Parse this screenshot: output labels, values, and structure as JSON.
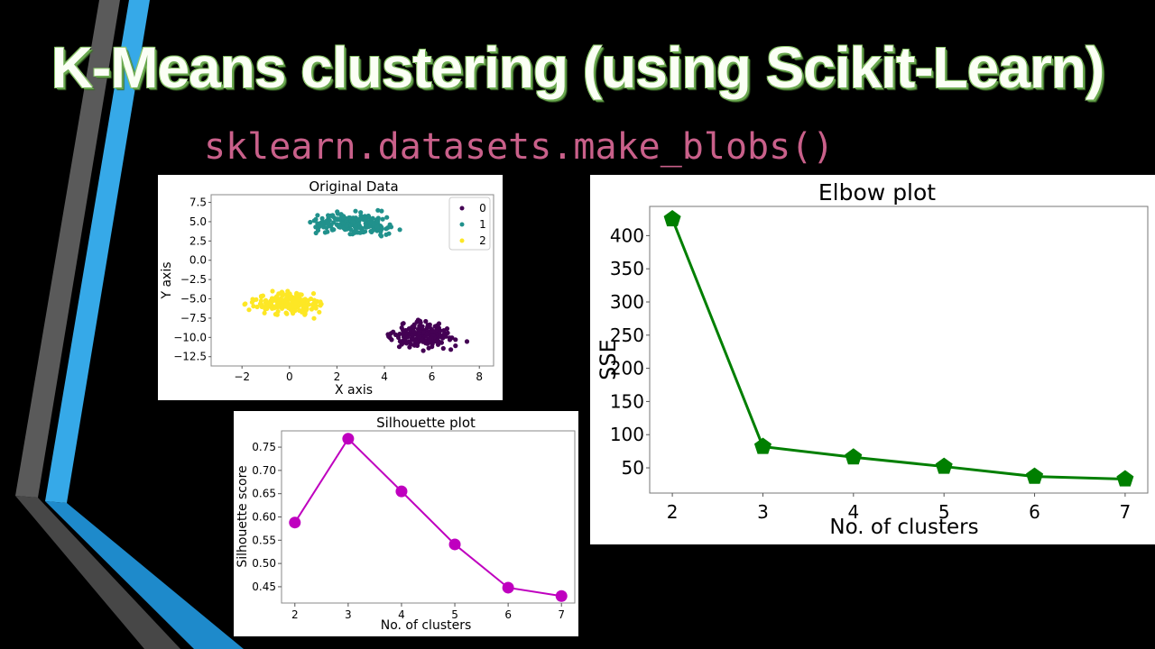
{
  "slide": {
    "title": "K-Means clustering (using Scikit-Learn)",
    "subtitle": "sklearn.datasets.make_blobs()",
    "colors": {
      "background": "#000000",
      "title_text": "#fbfff5",
      "title_outline": "#6aa84f",
      "subtitle_text": "#c9608a",
      "stripe_gray": "#5a5a5a",
      "stripe_blue": "#36a9e8"
    }
  },
  "chart_data": [
    {
      "type": "scatter",
      "title": "Original Data",
      "xlabel": "X axis",
      "ylabel": "Y axis",
      "xlim": [
        -3.3,
        8.6
      ],
      "ylim": [
        -13.7,
        8.5
      ],
      "xticks": [
        "-2",
        "0",
        "2",
        "4",
        "6",
        "8"
      ],
      "yticks": [
        "7.5",
        "5.0",
        "2.5",
        "0.0",
        "-2.5",
        "-5.0",
        "-7.5",
        "-10.0",
        "-12.5"
      ],
      "legend": {
        "position": "upper right",
        "entries": [
          "0",
          "1",
          "2"
        ]
      },
      "series": [
        {
          "name": "0",
          "color": "#440154",
          "center": [
            5.6,
            -9.8
          ],
          "spread_x": [
            3.1,
            8.1
          ],
          "spread_y": [
            -12.6,
            -7.1
          ],
          "n_points": 200
        },
        {
          "name": "1",
          "color": "#21918c",
          "center": [
            2.6,
            4.8
          ],
          "spread_x": [
            -0.6,
            5.3
          ],
          "spread_y": [
            2.8,
            7.6
          ],
          "n_points": 200
        },
        {
          "name": "2",
          "color": "#fde725",
          "center": [
            0.0,
            -5.5
          ],
          "spread_x": [
            -2.9,
            2.2
          ],
          "spread_y": [
            -8.1,
            -3.4
          ],
          "n_points": 200
        }
      ]
    },
    {
      "type": "line",
      "title": "Silhouette plot",
      "xlabel": "No. of clusters",
      "ylabel": "Silhouette score",
      "x": [
        2,
        3,
        4,
        5,
        6,
        7
      ],
      "values": [
        0.588,
        0.768,
        0.655,
        0.541,
        0.448,
        0.43
      ],
      "ylim": [
        0.415,
        0.785
      ],
      "yticks": [
        "0.75",
        "0.70",
        "0.65",
        "0.60",
        "0.55",
        "0.50",
        "0.45"
      ],
      "color": "#bf00bf",
      "marker": "circle"
    },
    {
      "type": "line",
      "title": "Elbow plot",
      "xlabel": "No. of clusters",
      "ylabel": "SSE",
      "x": [
        2,
        3,
        4,
        5,
        6,
        7
      ],
      "values": [
        425,
        82,
        66,
        52,
        37,
        33
      ],
      "ylim": [
        12,
        444
      ],
      "yticks": [
        "400",
        "350",
        "300",
        "250",
        "200",
        "150",
        "100",
        "50"
      ],
      "color": "#007f00",
      "marker": "pentagon"
    }
  ]
}
